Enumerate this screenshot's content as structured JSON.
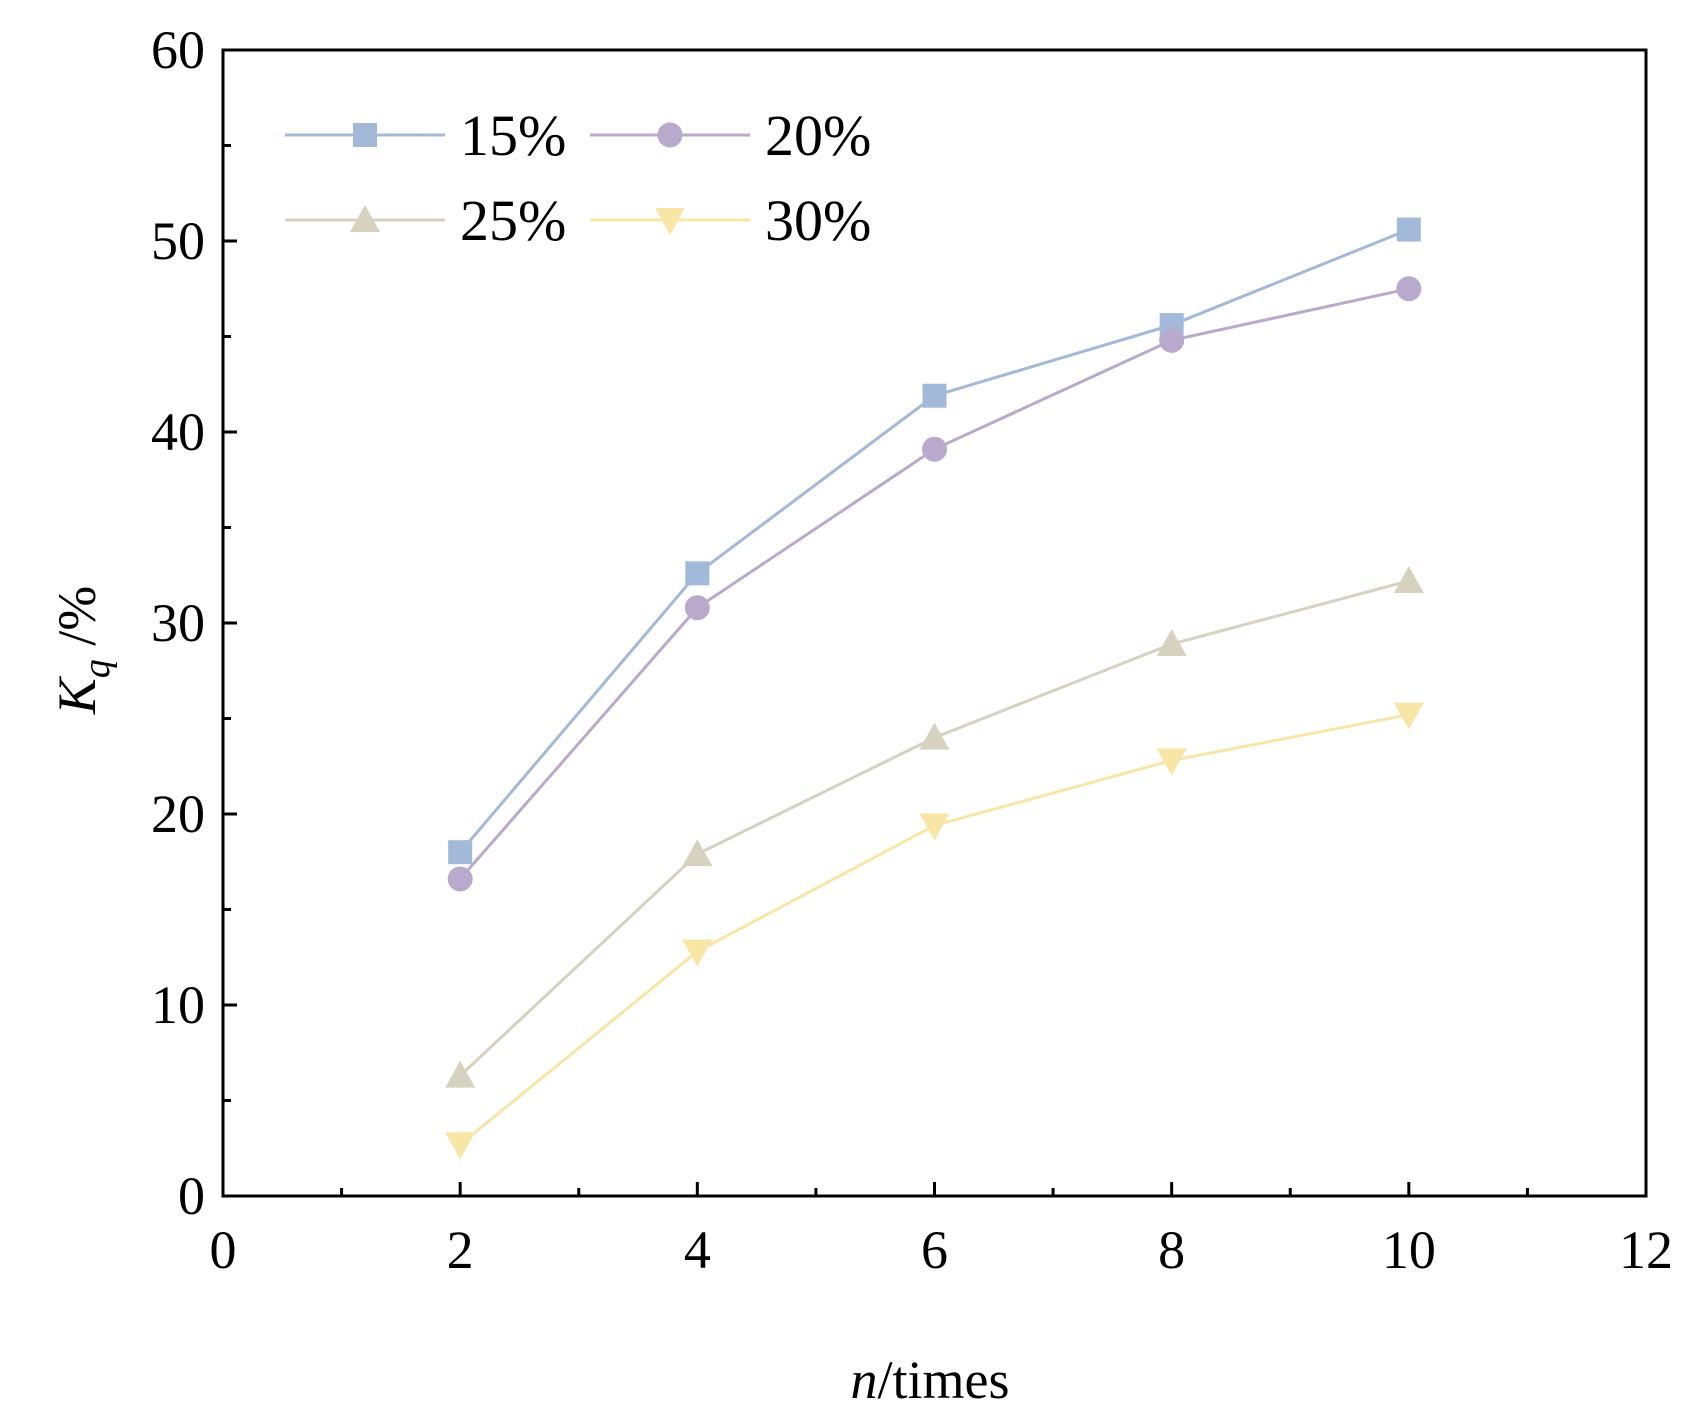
{
  "chart_data": {
    "type": "line",
    "x": [
      2,
      4,
      6,
      8,
      10
    ],
    "series": [
      {
        "name": "15%",
        "marker": "square",
        "color": "#a3b9d9",
        "values": [
          18.0,
          32.6,
          41.9,
          45.6,
          50.6
        ]
      },
      {
        "name": "20%",
        "marker": "circle",
        "color": "#b9aacd",
        "values": [
          16.6,
          30.8,
          39.1,
          44.8,
          47.5
        ]
      },
      {
        "name": "25%",
        "marker": "triangle-up",
        "color": "#d6d2bf",
        "values": [
          6.3,
          17.9,
          24.0,
          28.9,
          32.2
        ]
      },
      {
        "name": "30%",
        "marker": "triangle-down",
        "color": "#f8e6a6",
        "values": [
          2.7,
          12.8,
          19.4,
          22.8,
          25.2
        ]
      }
    ],
    "xlim": [
      0,
      12
    ],
    "ylim": [
      0,
      60
    ],
    "xticks": [
      "0",
      "2",
      "4",
      "6",
      "8",
      "10",
      "12"
    ],
    "yticks": [
      "0",
      "10",
      "20",
      "30",
      "40",
      "50",
      "60"
    ],
    "xlabel": {
      "italic": "n",
      "rest": "/times"
    },
    "ylabel": {
      "main": "K",
      "sub": "q",
      "rest": " /%"
    },
    "legend_position": "top-left",
    "grid": false
  }
}
